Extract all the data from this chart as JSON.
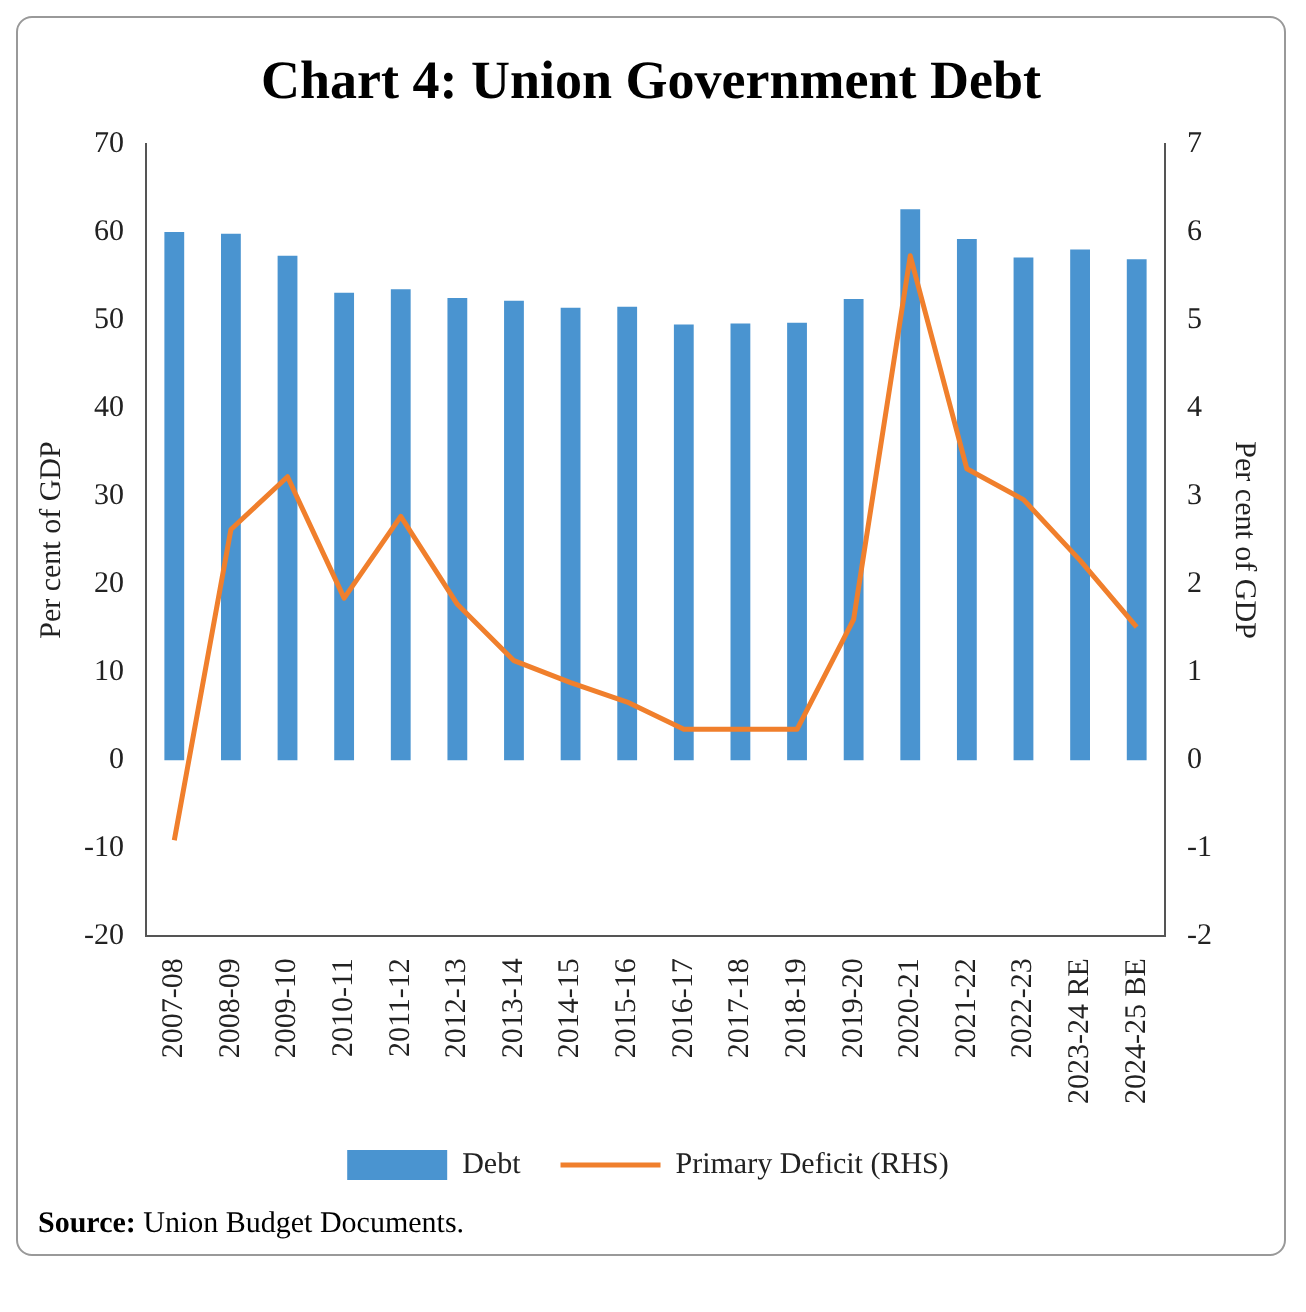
{
  "chart_data": {
    "type": "bar",
    "title": "Chart 4: Union Government Debt",
    "categories": [
      "2007-08",
      "2008-09",
      "2009-10",
      "2010-11",
      "2011-12",
      "2012-13",
      "2013-14",
      "2014-15",
      "2015-16",
      "2016-17",
      "2017-18",
      "2018-19",
      "2019-20",
      "2020-21",
      "2021-22",
      "2022-23",
      "2023-24 RE",
      "2024-25 BE"
    ],
    "series": [
      {
        "name": "Debt",
        "color": "#4a94d0",
        "values": [
          60.0,
          59.8,
          57.3,
          53.1,
          53.5,
          52.5,
          52.2,
          51.4,
          51.5,
          49.5,
          49.6,
          49.7,
          52.4,
          62.6,
          59.2,
          57.1,
          58.0,
          56.9
        ]
      },
      {
        "name": "Primary Deficit (RHS)",
        "type": "line",
        "axis": "y2",
        "color": "#f07f2c",
        "values": [
          -0.91,
          2.62,
          3.22,
          1.84,
          2.77,
          1.77,
          1.13,
          0.88,
          0.66,
          0.35,
          0.35,
          0.35,
          1.6,
          5.73,
          3.31,
          2.96,
          2.27,
          1.51
        ]
      }
    ],
    "ylabel": "Per cent of GDP",
    "y2label": "Per cent of GDP",
    "ylim": [
      -20,
      70
    ],
    "yticks": [
      -20,
      -10,
      0,
      10,
      20,
      30,
      40,
      50,
      60,
      70
    ],
    "y2lim": [
      -2,
      7
    ],
    "y2ticks": [
      -2,
      -1,
      0,
      1,
      2,
      3,
      4,
      5,
      6,
      7
    ],
    "grid": false,
    "legend": "bottom",
    "marker": "none",
    "line_style": "solid",
    "annotations": [
      "Source: Union Budget Documents."
    ]
  }
}
